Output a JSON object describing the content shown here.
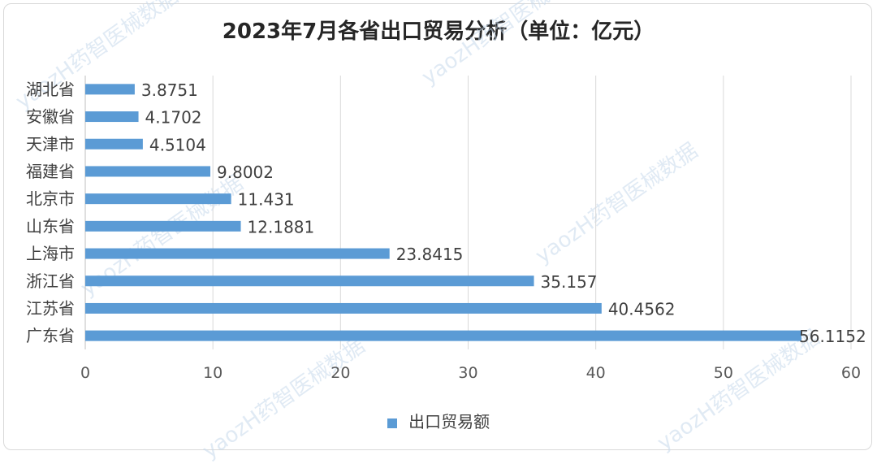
{
  "chart_data": {
    "type": "bar",
    "orientation": "horizontal",
    "title": "2023年7月各省出口贸易分析（单位：亿元）",
    "categories": [
      "湖北省",
      "安徽省",
      "天津市",
      "福建省",
      "北京市",
      "山东省",
      "上海市",
      "浙江省",
      "江苏省",
      "广东省"
    ],
    "series": [
      {
        "name": "出口贸易额",
        "values": [
          3.8751,
          4.1702,
          4.5104,
          9.8002,
          11.431,
          12.1881,
          23.8415,
          35.157,
          40.4562,
          56.1152
        ],
        "labels": [
          "3.8751",
          "4.1702",
          "4.5104",
          "9.8002",
          "11.431",
          "12.1881",
          "23.8415",
          "35.157",
          "40.4562",
          "56.1152"
        ],
        "color": "#5b9bd5"
      }
    ],
    "xlim": [
      0,
      60
    ],
    "xticks": [
      0,
      10,
      20,
      30,
      40,
      50,
      60
    ],
    "grid": true,
    "legend_position": "bottom"
  },
  "watermark": "yaozH药智医械数据"
}
